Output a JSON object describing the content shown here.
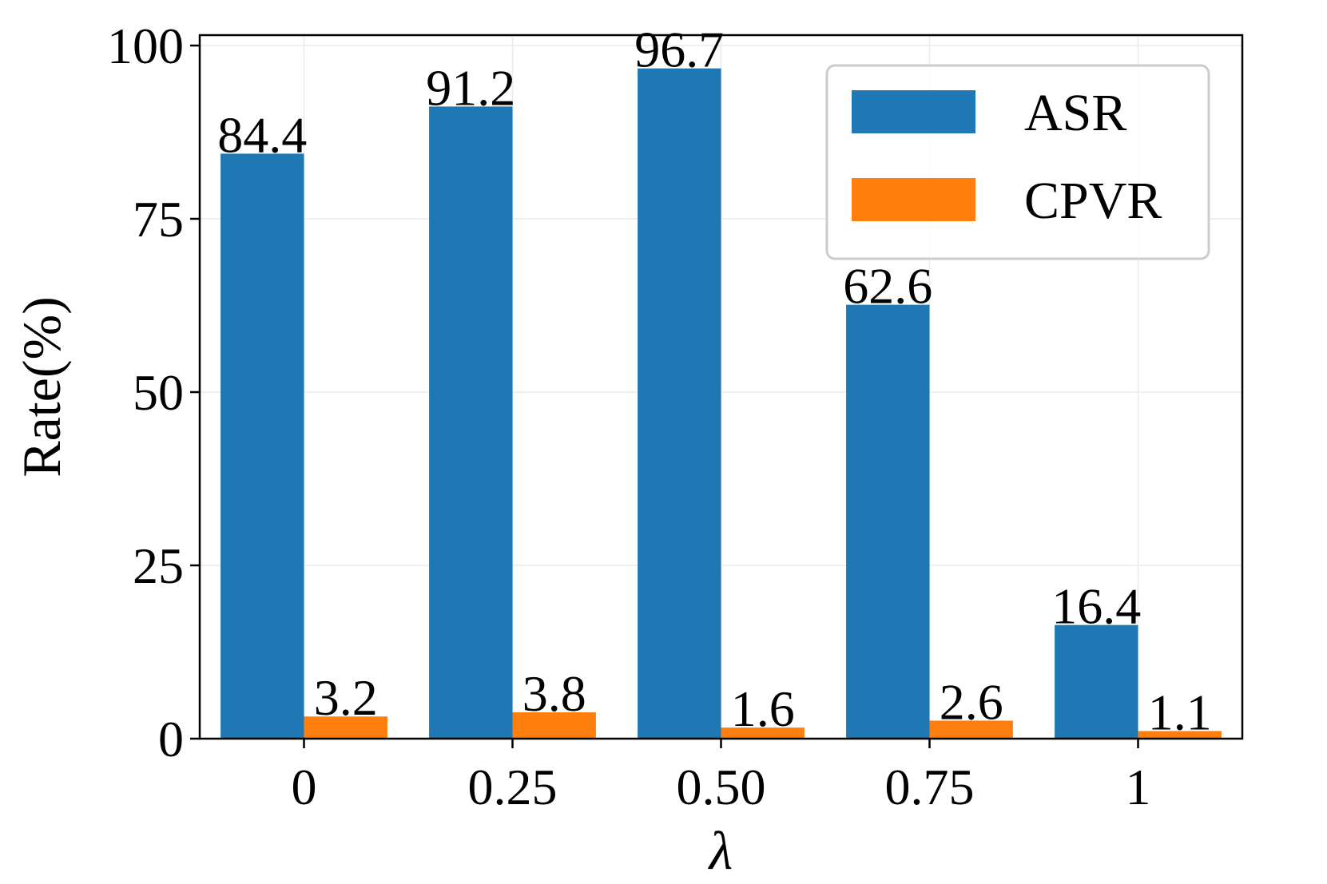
{
  "chart_data": {
    "type": "bar",
    "categories": [
      "0",
      "0.25",
      "0.50",
      "0.75",
      "1"
    ],
    "series": [
      {
        "name": "ASR",
        "values": [
          84.4,
          91.2,
          96.7,
          62.6,
          16.4
        ],
        "color": "#1f77b4"
      },
      {
        "name": "CPVR",
        "values": [
          3.2,
          3.8,
          1.6,
          2.6,
          1.1
        ],
        "color": "#ff7f0e"
      }
    ],
    "data_labels": {
      "ASR": [
        "84.4",
        "91.2",
        "96.7",
        "62.6",
        "16.4"
      ],
      "CPVR": [
        "3.2",
        "3.8",
        "1.6",
        "2.6",
        "1.1"
      ]
    },
    "title": "",
    "xlabel": "λ",
    "ylabel": "Rate(%)",
    "ylim": [
      0,
      101.5
    ],
    "yticks": [
      0,
      25,
      50,
      75,
      100
    ],
    "ytick_labels": [
      "0",
      "25",
      "50",
      "75",
      "100"
    ],
    "grid": true,
    "legend_position": "top-right"
  }
}
